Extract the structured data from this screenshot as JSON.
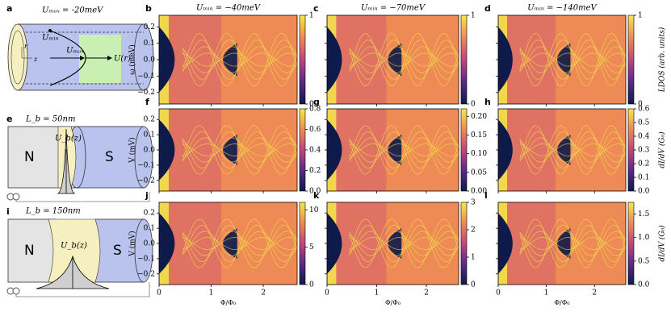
{
  "chart_data": [
    {
      "type": "heatmap",
      "panel": "b",
      "title": "Uₘᵢₙ = −40meV",
      "ylabel": "ω (meV)",
      "xlim": [
        0,
        2.65
      ],
      "ylim": [
        -0.27,
        0.27
      ],
      "xticks": [
        0,
        1,
        2
      ],
      "yticks": [
        {
          "value": -0.2,
          "label": "−0.2"
        },
        {
          "value": -0.1,
          "label": "−0.1"
        },
        {
          "value": 0,
          "label": "0.0"
        },
        0.1,
        0.2
      ],
      "colormap": [
        "#0d1a4a",
        "#5a2a88",
        "#c2457c",
        "#ee8a55",
        "#f5e84b"
      ],
      "colorbar": {
        "lim": [
          0,
          1
        ],
        "ticks": [
          0,
          1
        ]
      }
    },
    {
      "type": "heatmap",
      "panel": "c",
      "title": "Uₘᵢₙ = −70meV",
      "xlim": [
        0,
        2.65
      ],
      "ylim": [
        -0.27,
        0.27
      ],
      "xticks": [
        0,
        1,
        2
      ],
      "yticks": [
        {
          "value": -0.2,
          "label": "−0.2"
        },
        {
          "value": -0.1,
          "label": "−0.1"
        },
        {
          "value": 0,
          "label": "0.0"
        },
        0.1,
        0.2
      ],
      "colormap": [
        "#0d1a4a",
        "#5a2a88",
        "#c2457c",
        "#ee8a55",
        "#f5e84b"
      ],
      "colorbar": {
        "lim": [
          0,
          1
        ],
        "ticks": [
          0,
          1
        ]
      }
    },
    {
      "type": "heatmap",
      "panel": "d",
      "title": "Uₘᵢₙ = −140meV",
      "xlim": [
        0,
        2.65
      ],
      "ylim": [
        -0.27,
        0.27
      ],
      "xticks": [
        0,
        1,
        2
      ],
      "yticks": [
        {
          "value": -0.2,
          "label": "−0.2"
        },
        {
          "value": -0.1,
          "label": "−0.1"
        },
        {
          "value": 0,
          "label": "0.0"
        },
        0.1,
        0.2
      ],
      "colormap": [
        "#0d1a4a",
        "#5a2a88",
        "#c2457c",
        "#ee8a55",
        "#f5e84b"
      ],
      "colorbar": {
        "lim": [
          0,
          1
        ],
        "ticks": [
          0,
          1
        ],
        "label": "LDOS (arb. units)"
      }
    },
    {
      "type": "heatmap",
      "panel": "f",
      "ylabel": "V (mV)",
      "xlim": [
        0,
        2.65
      ],
      "ylim": [
        -0.27,
        0.27
      ],
      "xticks": [
        0,
        1,
        2
      ],
      "yticks": [
        {
          "value": -0.2,
          "label": "−0.2"
        },
        {
          "value": -0.1,
          "label": "−0.1"
        },
        {
          "value": 0,
          "label": "0.0"
        },
        0.1,
        0.2
      ],
      "colormap": [
        "#0d1a4a",
        "#5a2a88",
        "#c2457c",
        "#ee8a55",
        "#f5e84b"
      ],
      "colorbar": {
        "lim": [
          0,
          0.8
        ],
        "ticks": [
          {
            "value": 0,
            "label": "0.0"
          },
          0.2,
          0.4,
          0.6,
          0.8
        ]
      }
    },
    {
      "type": "heatmap",
      "panel": "g",
      "xlim": [
        0,
        2.65
      ],
      "ylim": [
        -0.27,
        0.27
      ],
      "xticks": [
        0,
        1,
        2
      ],
      "yticks": [
        {
          "value": -0.2,
          "label": "−0.2"
        },
        {
          "value": -0.1,
          "label": "−0.1"
        },
        {
          "value": 0,
          "label": "0.0"
        },
        0.1,
        0.2
      ],
      "colormap": [
        "#0d1a4a",
        "#5a2a88",
        "#c2457c",
        "#ee8a55",
        "#f5e84b"
      ],
      "colorbar": {
        "lim": [
          0,
          0.22
        ],
        "ticks": [
          {
            "value": 0,
            "label": "0.00"
          },
          {
            "value": 0.05,
            "label": "0.05"
          },
          {
            "value": 0.1,
            "label": "0.10"
          },
          {
            "value": 0.15,
            "label": "0.15"
          },
          {
            "value": 0.2,
            "label": "0.20"
          }
        ]
      }
    },
    {
      "type": "heatmap",
      "panel": "h",
      "xlim": [
        0,
        2.65
      ],
      "ylim": [
        -0.27,
        0.27
      ],
      "xticks": [
        0,
        1,
        2
      ],
      "yticks": [
        {
          "value": -0.2,
          "label": "−0.2"
        },
        {
          "value": -0.1,
          "label": "−0.1"
        },
        {
          "value": 0,
          "label": "0.0"
        },
        0.1,
        0.2
      ],
      "colormap": [
        "#0d1a4a",
        "#5a2a88",
        "#c2457c",
        "#ee8a55",
        "#f5e84b"
      ],
      "colorbar": {
        "lim": [
          0,
          0.6
        ],
        "ticks": [
          {
            "value": 0,
            "label": "0.0"
          },
          0.1,
          0.2,
          0.3,
          0.4,
          0.5,
          0.6
        ],
        "label": "dI/dV (G₀)"
      }
    },
    {
      "type": "heatmap",
      "panel": "j",
      "ylabel": "V (mV)",
      "xlabel": "Φ/Φ₀",
      "xlim": [
        0,
        2.65
      ],
      "ylim": [
        -0.27,
        0.27
      ],
      "xticks": [
        0,
        1,
        2
      ],
      "yticks": [
        {
          "value": -0.2,
          "label": "−0.2"
        },
        {
          "value": -0.1,
          "label": "−0.1"
        },
        {
          "value": 0,
          "label": "0.0"
        },
        0.1,
        0.2
      ],
      "colormap": [
        "#0d1a4a",
        "#5a2a88",
        "#c2457c",
        "#ee8a55",
        "#f5e84b"
      ],
      "colorbar": {
        "lim": [
          0,
          11
        ],
        "ticks": [
          0,
          5,
          10
        ]
      }
    },
    {
      "type": "heatmap",
      "panel": "k",
      "xlabel": "Φ/Φ₀",
      "xlim": [
        0,
        2.65
      ],
      "ylim": [
        -0.27,
        0.27
      ],
      "xticks": [
        0,
        1,
        2
      ],
      "yticks": [
        {
          "value": -0.2,
          "label": "−0.2"
        },
        {
          "value": -0.1,
          "label": "−0.1"
        },
        {
          "value": 0,
          "label": "0.0"
        },
        0.1,
        0.2
      ],
      "colormap": [
        "#0d1a4a",
        "#5a2a88",
        "#c2457c",
        "#ee8a55",
        "#f5e84b"
      ],
      "colorbar": {
        "lim": [
          0,
          3
        ],
        "ticks": [
          0,
          1,
          2,
          3
        ]
      }
    },
    {
      "type": "heatmap",
      "panel": "l",
      "xlabel": "Φ/Φ₀",
      "xlim": [
        0,
        2.65
      ],
      "ylim": [
        -0.27,
        0.27
      ],
      "xticks": [
        0,
        1,
        2
      ],
      "yticks": [
        {
          "value": -0.2,
          "label": "−0.2"
        },
        {
          "value": -0.1,
          "label": "−0.1"
        },
        {
          "value": 0,
          "label": "0.0"
        },
        0.1,
        0.2
      ],
      "colormap": [
        "#0d1a4a",
        "#5a2a88",
        "#c2457c",
        "#ee8a55",
        "#f5e84b"
      ],
      "colorbar": {
        "lim": [
          0,
          1.75
        ],
        "ticks": [
          {
            "value": 0,
            "label": "0.0"
          },
          0.5,
          {
            "value": 1,
            "label": "1.0"
          },
          1.5
        ],
        "label": "dI/dV (G₀)"
      }
    }
  ],
  "diagrams": {
    "a": {
      "letter": "a",
      "title": "Uₘₐₓ = -20meV",
      "r": "r",
      "z": "z",
      "umin": "Uₘᵢₙ",
      "umax": "Uₘₐₓ",
      "u": "U(r)"
    },
    "e": {
      "letter": "e",
      "length": "L_b = 50nm",
      "left": "N",
      "right": "S",
      "barrier": "U_b(z)"
    },
    "i": {
      "letter": "i",
      "length": "L_b = 150nm",
      "left": "N",
      "right": "S",
      "barrier": "U_b(z)"
    }
  }
}
